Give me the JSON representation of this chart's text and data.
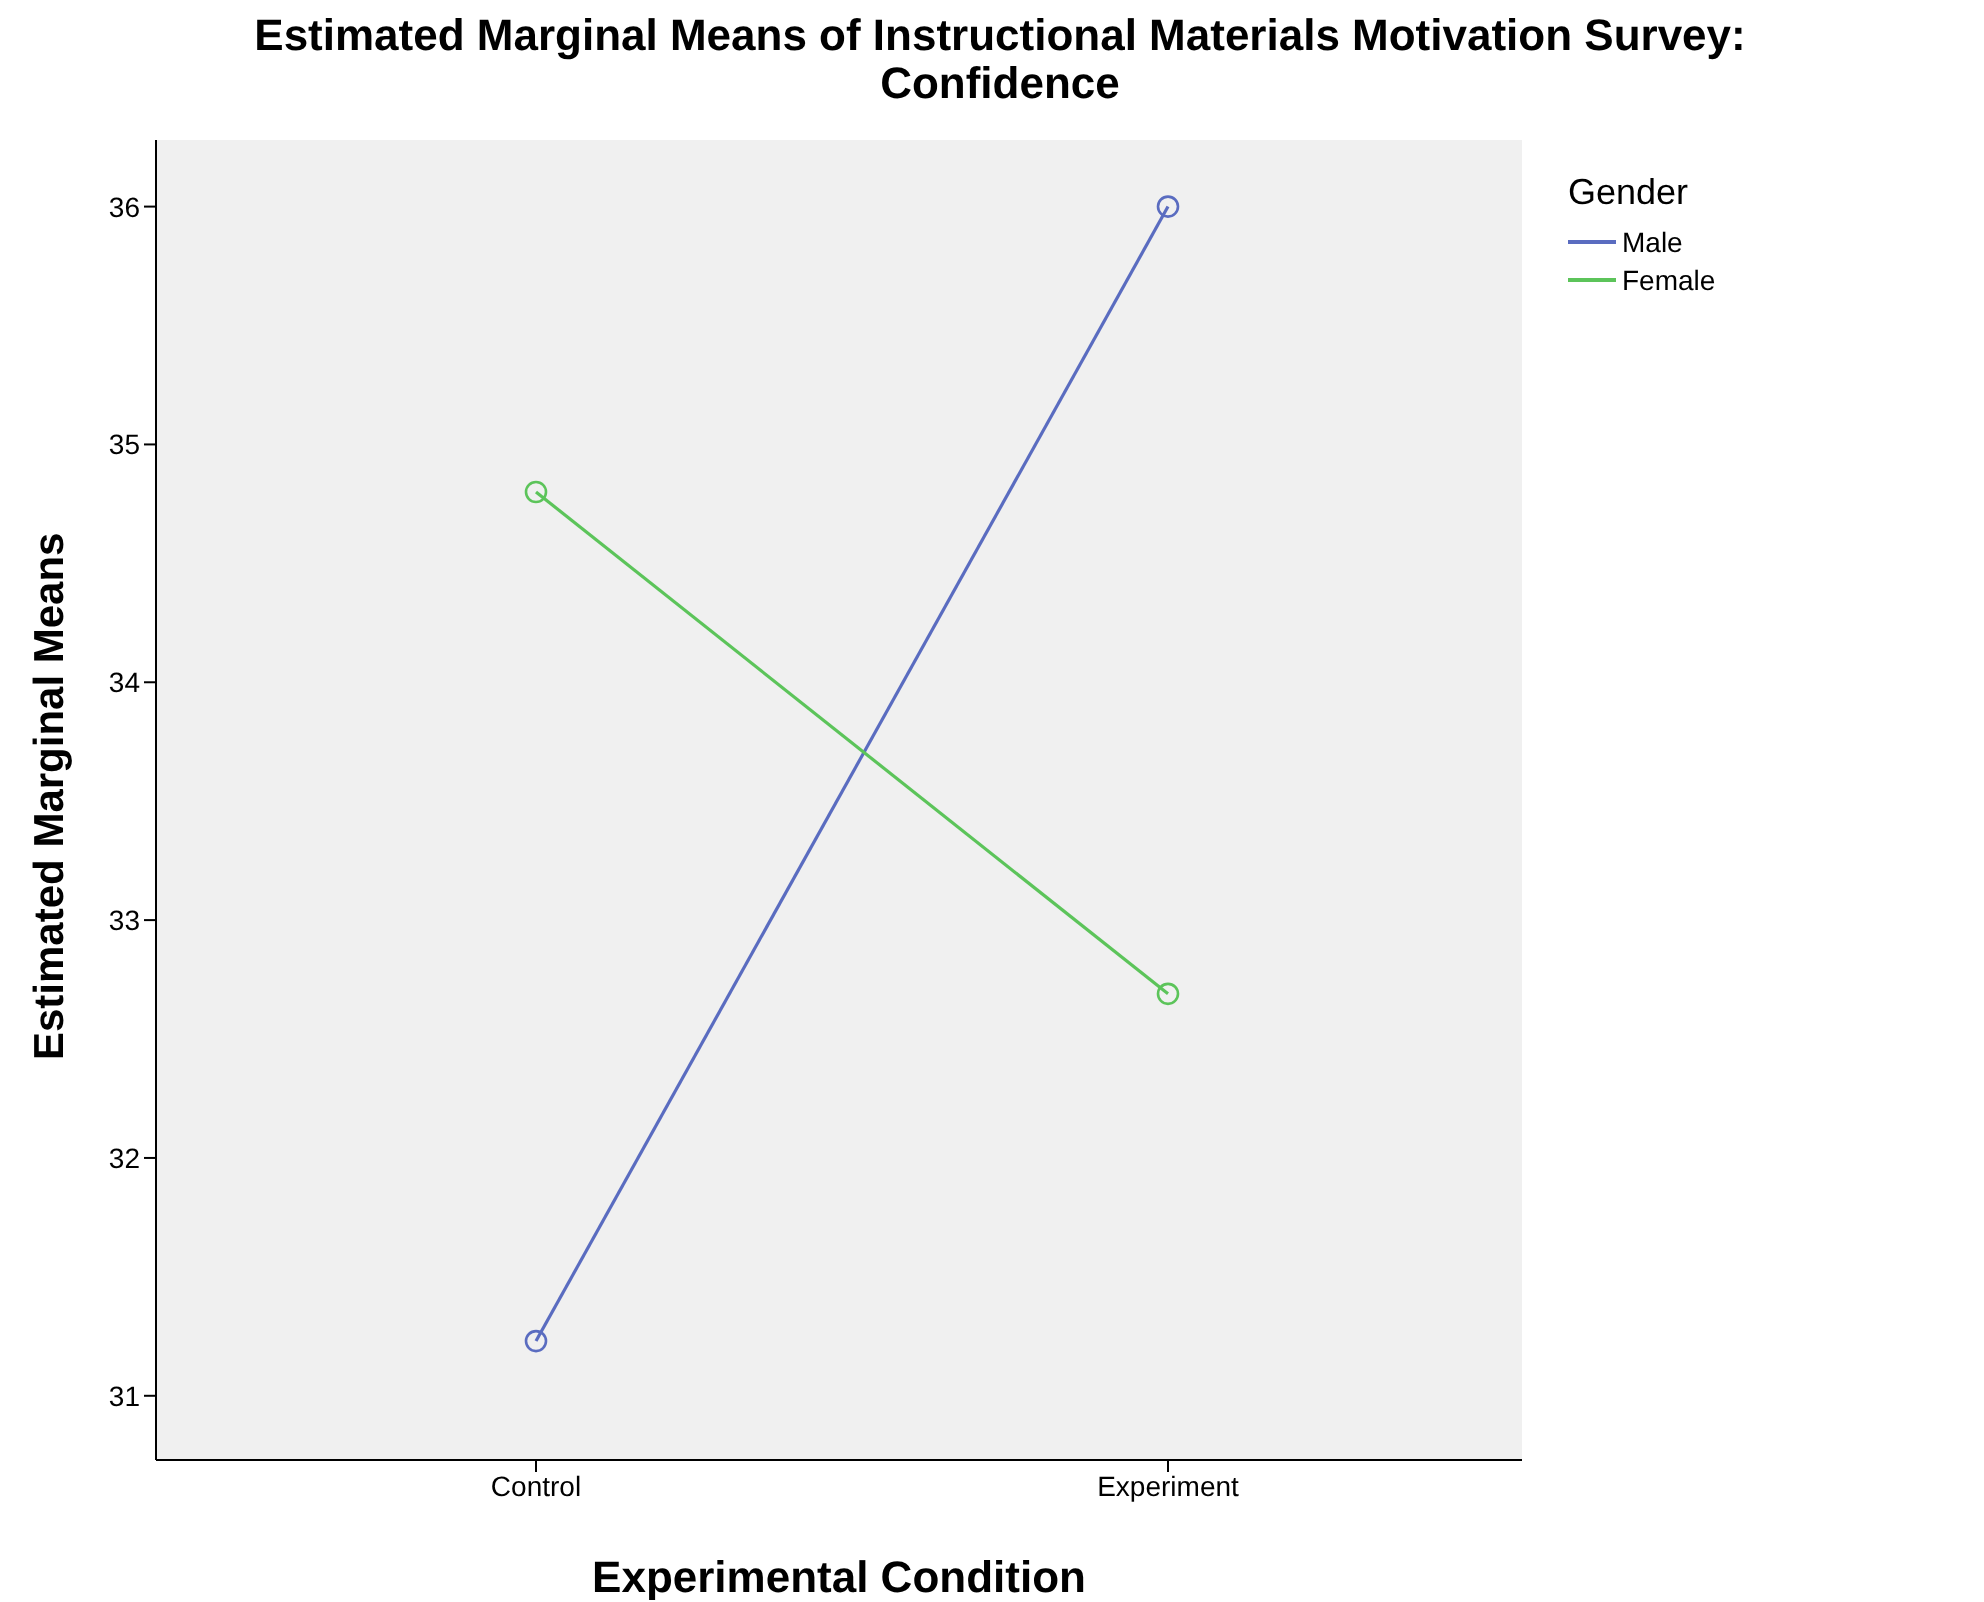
{
  "chart_data": {
    "type": "line",
    "title": "Estimated Marginal Means of Instructional Materials Motivation Survey: Confidence",
    "xlabel": "Experimental Condition",
    "ylabel": "Estimated Marginal Means",
    "legend_title": "Gender",
    "categories": [
      "Control",
      "Experiment"
    ],
    "series": [
      {
        "name": "Male",
        "color": "#5a6cc0",
        "values": [
          31.23,
          36.0
        ]
      },
      {
        "name": "Female",
        "color": "#5cc45a",
        "values": [
          34.8,
          32.69
        ]
      }
    ],
    "ylim": [
      30.73,
      36.28
    ],
    "yticks": [
      31,
      32,
      33,
      34,
      35,
      36
    ],
    "marker": "circle",
    "legend": "top right"
  }
}
